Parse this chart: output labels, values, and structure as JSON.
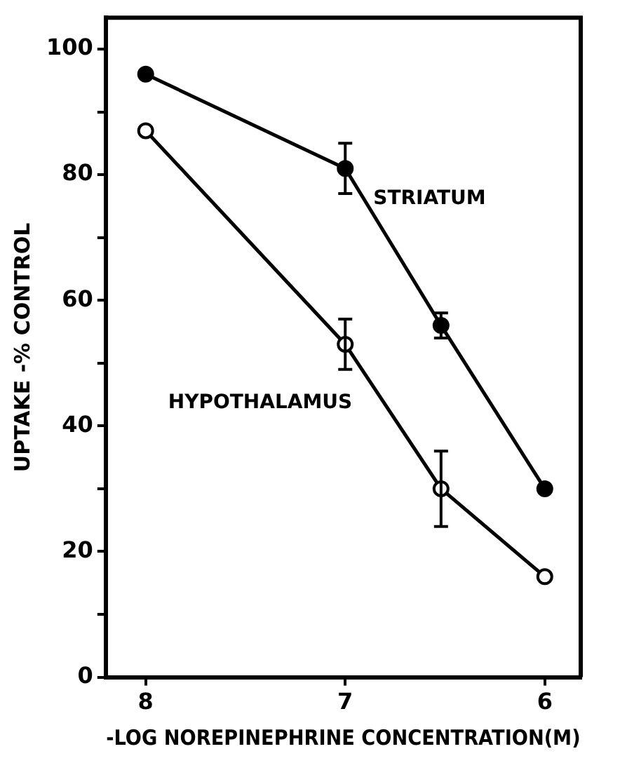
{
  "chart_data": {
    "type": "line",
    "xlabel": "-LOG NOREPINEPHRINE CONCENTRATION(M)",
    "ylabel": "UPTAKE -% CONTROL",
    "xlim": [
      8.2,
      5.82
    ],
    "xticks": [
      8,
      7,
      6
    ],
    "ylim": [
      0,
      105
    ],
    "yticks": [
      0,
      {
        "value": 10,
        "label": null
      },
      20,
      {
        "value": 30,
        "label": null
      },
      40,
      {
        "value": 50,
        "label": null
      },
      60,
      {
        "value": 70,
        "label": null
      },
      80,
      {
        "value": 90,
        "label": null
      },
      100
    ],
    "grid": false,
    "legend": false,
    "marker": "circle",
    "line_style": "solid",
    "series": [
      {
        "name": "STRIATUM",
        "color": "#000000",
        "x": [
          8,
          7,
          6.52,
          6
        ],
        "values": [
          96,
          81,
          56,
          30
        ],
        "errors": [
          null,
          [
            77,
            85
          ],
          [
            54,
            58
          ],
          null
        ]
      },
      {
        "name": "HYPOTHALAMUS",
        "color": "#000000",
        "x": [
          8,
          7,
          6.52,
          6
        ],
        "values": [
          87,
          53,
          30,
          16
        ],
        "errors": [
          null,
          [
            49,
            57
          ],
          [
            24,
            36
          ],
          null
        ]
      }
    ]
  }
}
